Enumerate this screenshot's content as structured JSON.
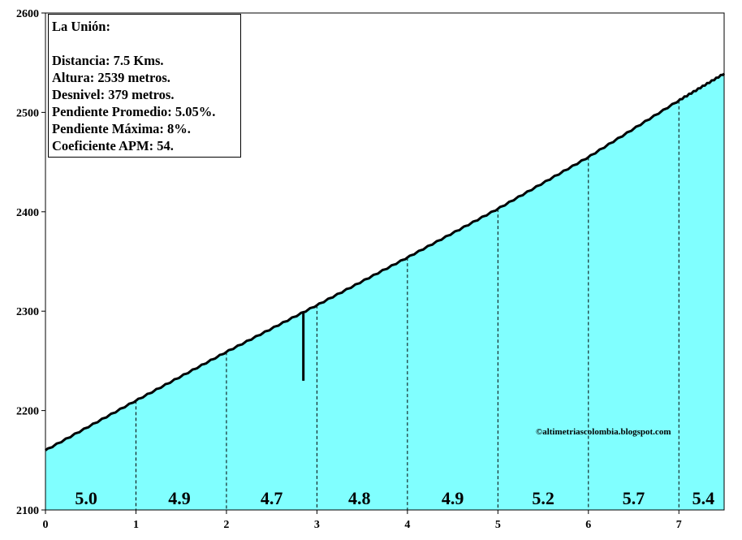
{
  "chart_data": {
    "type": "area",
    "title": "La Unión:",
    "info_lines": [
      "Distancia: 7.5 Kms.",
      "Altura:  2539 metros.",
      "Desnivel: 379 metros.",
      "Pendiente Promedio: 5.05%.",
      "Pendiente Máxima:  8%.",
      "Coeficiente APM: 54."
    ],
    "credit": "©altimetriascolombia.blogspot.com",
    "xlim": [
      0,
      7.5
    ],
    "ylim": [
      2100,
      2600
    ],
    "x_ticks": [
      "0",
      "1",
      "2",
      "3",
      "4",
      "5",
      "6",
      "7"
    ],
    "y_ticks": [
      "2100",
      "2200",
      "2300",
      "2400",
      "2500",
      "2600"
    ],
    "x": [
      0,
      1,
      2,
      3,
      4,
      5,
      6,
      7,
      7.5
    ],
    "y": [
      2160,
      2210,
      2259,
      2306,
      2354,
      2403,
      2455,
      2512,
      2539
    ],
    "marker": {
      "x": 2.85,
      "y_top": 2298,
      "y_bottom": 2230
    },
    "segment_slopes": [
      {
        "x": 0.45,
        "label": "5.0"
      },
      {
        "x": 1.48,
        "label": "4.9"
      },
      {
        "x": 2.5,
        "label": "4.7"
      },
      {
        "x": 3.47,
        "label": "4.8"
      },
      {
        "x": 4.5,
        "label": "4.9"
      },
      {
        "x": 5.5,
        "label": "5.2"
      },
      {
        "x": 6.5,
        "label": "5.7"
      },
      {
        "x": 7.27,
        "label": "5.4"
      }
    ],
    "colors": {
      "fill": "#80ffff",
      "line": "#000000",
      "background": "#ffffff"
    },
    "grid": false
  }
}
